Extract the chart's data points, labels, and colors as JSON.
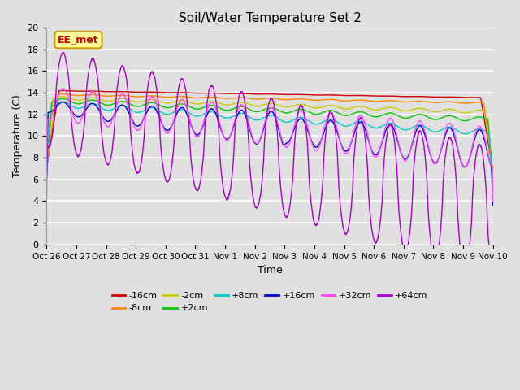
{
  "title": "Soil/Water Temperature Set 2",
  "xlabel": "Time",
  "ylabel": "Temperature (C)",
  "ylim": [
    0,
    20
  ],
  "yticks": [
    0,
    2,
    4,
    6,
    8,
    10,
    12,
    14,
    16,
    18,
    20
  ],
  "xtick_labels": [
    "Oct 26",
    "Oct 27",
    "Oct 28",
    "Oct 29",
    "Oct 30",
    "Oct 31",
    "Nov 1",
    "Nov 2",
    "Nov 3",
    "Nov 4",
    "Nov 5",
    "Nov 6",
    "Nov 7",
    "Nov 8",
    "Nov 9",
    "Nov 10"
  ],
  "series_labels": [
    "-16cm",
    "-8cm",
    "-2cm",
    "+2cm",
    "+8cm",
    "+16cm",
    "+32cm",
    "+64cm"
  ],
  "series_colors": [
    "#cc0000",
    "#ff8800",
    "#cccc00",
    "#00cc00",
    "#00cccc",
    "#0000cc",
    "#ff44ff",
    "#aa00cc"
  ],
  "annotation_text": "EE_met",
  "annotation_color": "#cc0000",
  "bg_color": "#e0e0e0",
  "plot_bg_color": "#e0e0e0"
}
